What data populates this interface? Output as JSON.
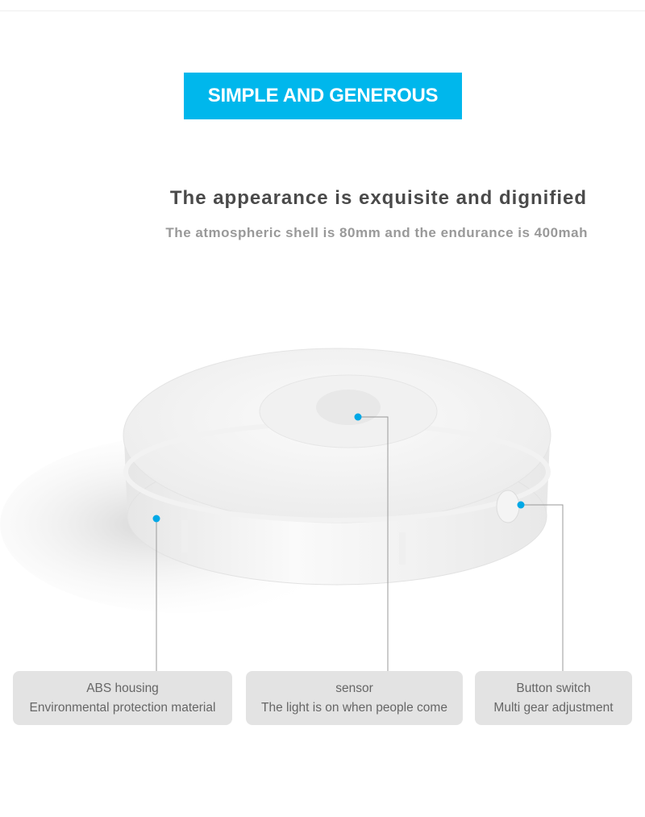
{
  "banner": {
    "title": "SIMPLE AND GENEROUS",
    "color": "#00b7ec"
  },
  "headline": "The appearance is exquisite and dignified",
  "subline": "The atmospheric shell is 80mm and the endurance is 400mah",
  "callouts": [
    {
      "title": "ABS housing",
      "description": "Environmental protection material"
    },
    {
      "title": "sensor",
      "description": "The light is on when people come"
    },
    {
      "title": "Button switch",
      "description": "Multi gear adjustment"
    }
  ],
  "accent_dot_color": "#00a8e6"
}
